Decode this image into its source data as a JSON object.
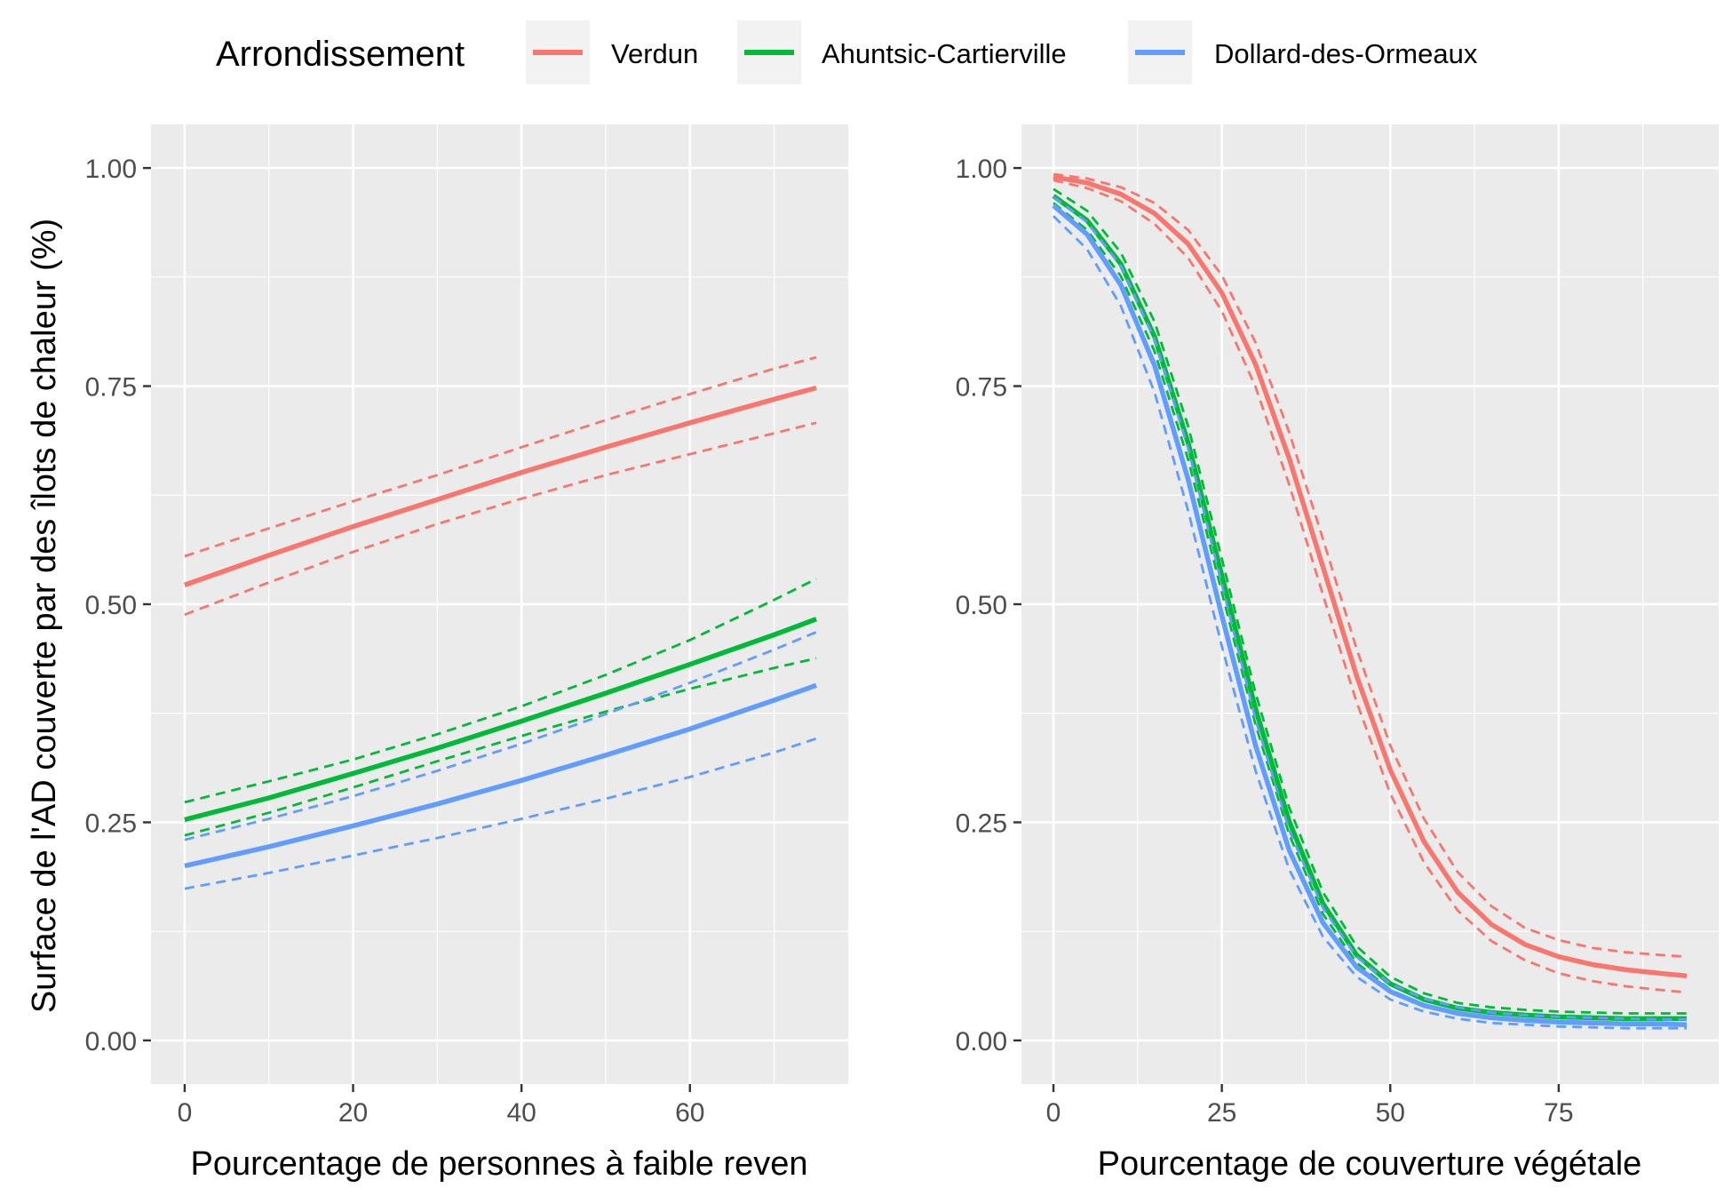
{
  "legend": {
    "title": "Arrondissement",
    "position": "top",
    "items": [
      {
        "label": "Verdun",
        "color": "#F8766D"
      },
      {
        "label": "Ahuntsic-Cartierville",
        "color": "#00BA38"
      },
      {
        "label": "Dollard-des-Ormeaux",
        "color": "#619CFF"
      }
    ]
  },
  "shared_ylabel": "Surface de l'AD couverte par des îlots de chaleur (%)",
  "chart_data": [
    {
      "type": "line",
      "xlabel": "Pourcentage de personnes à faible reven",
      "ylabel": "Surface de l'AD couverte par des îlots de chaleur (%)",
      "xlim": [
        -4,
        78.8
      ],
      "ylim": [
        -0.05,
        1.05
      ],
      "xticks": [
        0,
        20,
        40,
        60
      ],
      "xtick_labels": [
        "0",
        "20",
        "40",
        "60"
      ],
      "yticks": [
        0,
        0.25,
        0.5,
        0.75,
        1.0
      ],
      "ytick_labels": [
        "0.00",
        "0.25",
        "0.50",
        "0.75",
        "1.00"
      ],
      "grid": true,
      "series": [
        {
          "name": "Verdun",
          "color": "#F8766D",
          "x": [
            0,
            10,
            20,
            30,
            40,
            50,
            60,
            70,
            75
          ],
          "y": [
            0.522,
            0.556,
            0.589,
            0.62,
            0.651,
            0.68,
            0.708,
            0.735,
            0.748
          ],
          "lower": [
            0.488,
            0.525,
            0.56,
            0.592,
            0.621,
            0.648,
            0.672,
            0.696,
            0.708
          ],
          "upper": [
            0.555,
            0.587,
            0.618,
            0.648,
            0.68,
            0.711,
            0.741,
            0.77,
            0.783
          ]
        },
        {
          "name": "Ahuntsic-Cartierville",
          "color": "#00BA38",
          "x": [
            0,
            10,
            20,
            30,
            40,
            50,
            60,
            70,
            75
          ],
          "y": [
            0.253,
            0.278,
            0.306,
            0.335,
            0.366,
            0.398,
            0.431,
            0.465,
            0.483
          ],
          "lower": [
            0.235,
            0.261,
            0.29,
            0.32,
            0.349,
            0.377,
            0.403,
            0.427,
            0.438
          ],
          "upper": [
            0.273,
            0.297,
            0.322,
            0.351,
            0.383,
            0.419,
            0.459,
            0.505,
            0.529
          ]
        },
        {
          "name": "Dollard-des-Ormeaux",
          "color": "#619CFF",
          "x": [
            0,
            10,
            20,
            30,
            40,
            50,
            60,
            70,
            75
          ],
          "y": [
            0.2,
            0.222,
            0.246,
            0.271,
            0.298,
            0.327,
            0.357,
            0.39,
            0.407
          ],
          "lower": [
            0.174,
            0.192,
            0.212,
            0.232,
            0.254,
            0.277,
            0.302,
            0.33,
            0.346
          ],
          "upper": [
            0.23,
            0.254,
            0.28,
            0.309,
            0.34,
            0.374,
            0.41,
            0.448,
            0.468
          ]
        }
      ]
    },
    {
      "type": "line",
      "xlabel": "Pourcentage de couverture végétale",
      "ylabel": "",
      "xlim": [
        -4.75,
        98.75
      ],
      "ylim": [
        -0.05,
        1.05
      ],
      "xticks": [
        0,
        25,
        50,
        75
      ],
      "xtick_labels": [
        "0",
        "25",
        "50",
        "75"
      ],
      "yticks": [
        0,
        0.25,
        0.5,
        0.75,
        1.0
      ],
      "ytick_labels": [
        "0.00",
        "0.25",
        "0.50",
        "0.75",
        "1.00"
      ],
      "grid": true,
      "series": [
        {
          "name": "Verdun",
          "color": "#F8766D",
          "x": [
            0,
            5,
            10,
            15,
            20,
            25,
            30,
            35,
            40,
            45,
            50,
            55,
            60,
            65,
            70,
            75,
            80,
            85,
            90,
            94
          ],
          "y": [
            0.99,
            0.983,
            0.97,
            0.948,
            0.913,
            0.857,
            0.775,
            0.667,
            0.543,
            0.418,
            0.31,
            0.228,
            0.17,
            0.133,
            0.11,
            0.096,
            0.087,
            0.081,
            0.077,
            0.074
          ],
          "lower": [
            0.986,
            0.977,
            0.962,
            0.936,
            0.897,
            0.836,
            0.749,
            0.637,
            0.511,
            0.388,
            0.283,
            0.204,
            0.149,
            0.114,
            0.092,
            0.077,
            0.068,
            0.062,
            0.058,
            0.055
          ],
          "upper": [
            0.993,
            0.988,
            0.978,
            0.96,
            0.929,
            0.877,
            0.8,
            0.697,
            0.575,
            0.449,
            0.338,
            0.254,
            0.193,
            0.154,
            0.129,
            0.115,
            0.106,
            0.101,
            0.098,
            0.096
          ]
        },
        {
          "name": "Ahuntsic-Cartierville",
          "color": "#00BA38",
          "x": [
            0,
            5,
            10,
            15,
            20,
            25,
            30,
            35,
            40,
            45,
            50,
            55,
            60,
            65,
            70,
            75,
            80,
            85,
            90,
            94
          ],
          "y": [
            0.968,
            0.94,
            0.89,
            0.807,
            0.685,
            0.533,
            0.38,
            0.251,
            0.157,
            0.098,
            0.065,
            0.047,
            0.037,
            0.032,
            0.029,
            0.027,
            0.026,
            0.025,
            0.025,
            0.025
          ],
          "lower": [
            0.96,
            0.929,
            0.876,
            0.79,
            0.666,
            0.514,
            0.362,
            0.236,
            0.145,
            0.089,
            0.058,
            0.041,
            0.032,
            0.027,
            0.024,
            0.022,
            0.021,
            0.02,
            0.019,
            0.019
          ],
          "upper": [
            0.976,
            0.951,
            0.903,
            0.824,
            0.704,
            0.552,
            0.398,
            0.267,
            0.17,
            0.108,
            0.073,
            0.054,
            0.043,
            0.038,
            0.035,
            0.033,
            0.032,
            0.031,
            0.031,
            0.031
          ]
        },
        {
          "name": "Dollard-des-Ormeaux",
          "color": "#619CFF",
          "x": [
            0,
            5,
            10,
            15,
            20,
            25,
            30,
            35,
            40,
            45,
            50,
            55,
            60,
            65,
            70,
            75,
            80,
            85,
            90,
            94
          ],
          "y": [
            0.957,
            0.924,
            0.866,
            0.774,
            0.643,
            0.487,
            0.338,
            0.218,
            0.135,
            0.084,
            0.056,
            0.04,
            0.031,
            0.026,
            0.023,
            0.021,
            0.02,
            0.019,
            0.019,
            0.018
          ],
          "lower": [
            0.945,
            0.907,
            0.842,
            0.743,
            0.607,
            0.452,
            0.309,
            0.196,
            0.119,
            0.073,
            0.047,
            0.033,
            0.025,
            0.02,
            0.018,
            0.016,
            0.015,
            0.014,
            0.014,
            0.014
          ],
          "upper": [
            0.967,
            0.938,
            0.888,
            0.804,
            0.679,
            0.523,
            0.368,
            0.241,
            0.152,
            0.096,
            0.065,
            0.048,
            0.038,
            0.032,
            0.029,
            0.027,
            0.026,
            0.025,
            0.024,
            0.024
          ]
        }
      ]
    }
  ]
}
